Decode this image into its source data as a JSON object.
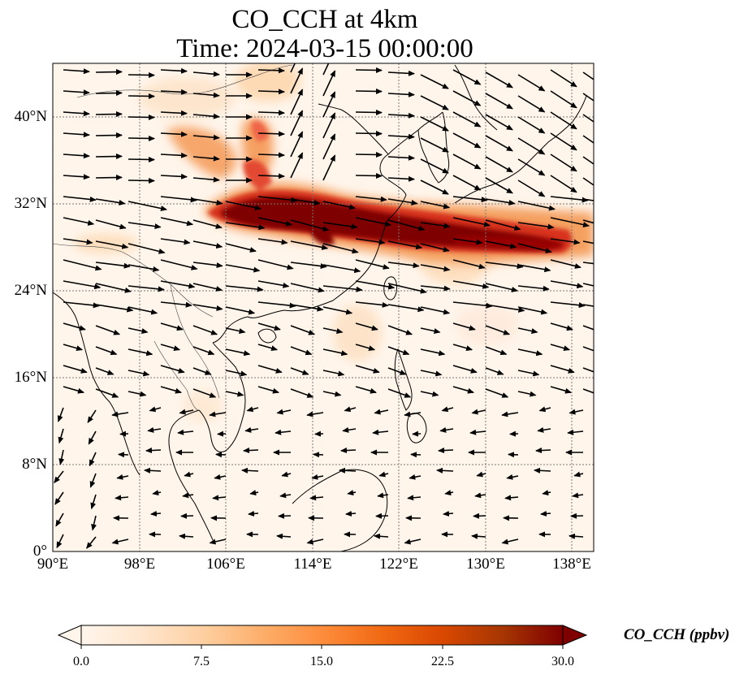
{
  "title": {
    "line1": "CO_CCH at 4km",
    "line2": "Time: 2024-03-15 00:00:00"
  },
  "map": {
    "extent": {
      "lon": [
        90,
        140
      ],
      "lat": [
        0,
        45
      ]
    },
    "lat_ticks": [
      {
        "value": 0,
        "label": "0°"
      },
      {
        "value": 8,
        "label": "8°N"
      },
      {
        "value": 16,
        "label": "16°N"
      },
      {
        "value": 24,
        "label": "24°N"
      },
      {
        "value": 32,
        "label": "32°N"
      },
      {
        "value": 40,
        "label": "40°N"
      }
    ],
    "lon_ticks": [
      {
        "value": 90,
        "label": "90°E"
      },
      {
        "value": 98,
        "label": "98°E"
      },
      {
        "value": 106,
        "label": "106°E"
      },
      {
        "value": 114,
        "label": "114°E"
      },
      {
        "value": 122,
        "label": "122°E"
      },
      {
        "value": 130,
        "label": "130°E"
      },
      {
        "value": 138,
        "label": "138°E"
      }
    ],
    "gridlines": true
  },
  "colorbar": {
    "label": "CO_CCH (ppbv)",
    "min": 0.0,
    "max": 30.0,
    "ticks": [
      "0.0",
      "7.5",
      "15.0",
      "22.5",
      "30.0"
    ],
    "extend": "both",
    "colors": [
      "#fff5eb",
      "#fee6ce",
      "#fdd0a2",
      "#fdae6b",
      "#fd8d3c",
      "#f16913",
      "#d94801",
      "#a63603",
      "#7f0000"
    ]
  },
  "colors": {
    "plume": "#7f0000",
    "background_field": "#fff5eb"
  }
}
